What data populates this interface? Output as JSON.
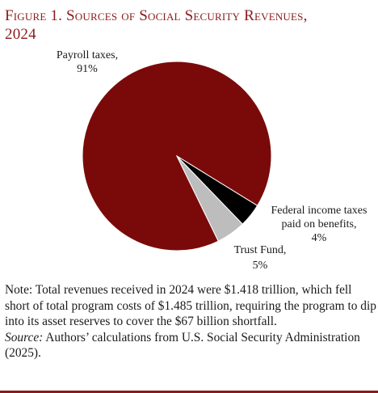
{
  "figure": {
    "title_line1": "Figure 1. Sources of Social Security Revenues,",
    "title_line2": "2024",
    "note_text": "Note: Total revenues received in 2024 were $1.418 trillion, which fell short of total program costs of $1.485 trillion, requiring the program to dip into its asset reserves to cover the $67 billion shortfall.",
    "source_label": "Source:",
    "source_text": " Authors’ calculations from U.S. Social Security Administration (2025)."
  },
  "chart_data": {
    "type": "pie",
    "slices": [
      {
        "label_lines": [
          "Payroll taxes,",
          "91%"
        ],
        "value": 91,
        "color": "#7a0a0a"
      },
      {
        "label_lines": [
          "Federal income taxes",
          "paid on benefits,",
          "4%"
        ],
        "value": 4,
        "color": "#000000"
      },
      {
        "label_lines": [
          "Trust Fund,",
          "5%"
        ],
        "value": 5,
        "color": "#bdbdbd"
      }
    ]
  }
}
